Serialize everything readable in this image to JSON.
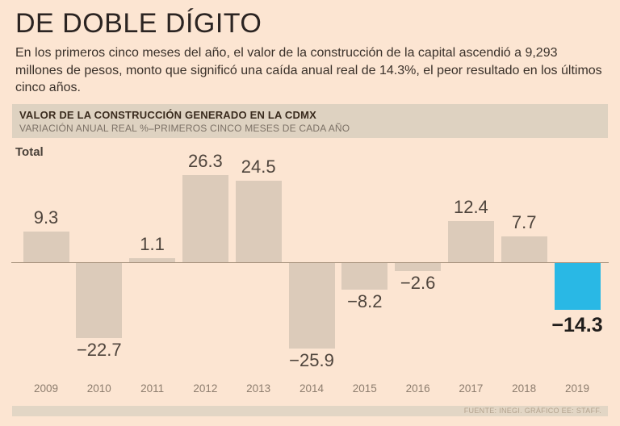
{
  "page": {
    "title": "DE DOBLE DÍGITO",
    "intro": "En los primeros cinco meses del año, el valor de la construcción de la capital ascendió a 9,293 millones de pesos, monto que significó una caída anual real de 14.3%, el peor resultado en los últimos cinco años.",
    "panel": {
      "heading": "VALOR DE LA CONSTRUCCIÓN GENERADO EN LA CDMX",
      "subheading": "VARIACIÓN ANUAL REAL %–PRIMEROS CINCO MESES DE CADA AÑO"
    },
    "series_label": "Total",
    "source": "FUENTE: INEGI. GRÁFICO EE: STAFF."
  },
  "chart_data": {
    "type": "bar",
    "title": "VALOR DE LA CONSTRUCCIÓN GENERADO EN LA CDMX",
    "subtitle": "VARIACIÓN ANUAL REAL %–PRIMEROS CINCO MESES DE CADA AÑO",
    "series_label": "Total",
    "categories": [
      "2009",
      "2010",
      "2011",
      "2012",
      "2013",
      "2014",
      "2015",
      "2016",
      "2017",
      "2018",
      "2019"
    ],
    "values": [
      9.3,
      -22.7,
      1.1,
      26.3,
      24.5,
      -25.9,
      -8.2,
      -2.6,
      12.4,
      7.7,
      -14.3
    ],
    "ylim": [
      -26,
      27
    ],
    "grid": false,
    "legend": "none",
    "bar_color": "#dccbba",
    "highlight_category": "2019",
    "highlight_color": "#29b8e5",
    "background_color": "#fce5d2",
    "baseline_color": "#a8937e"
  }
}
